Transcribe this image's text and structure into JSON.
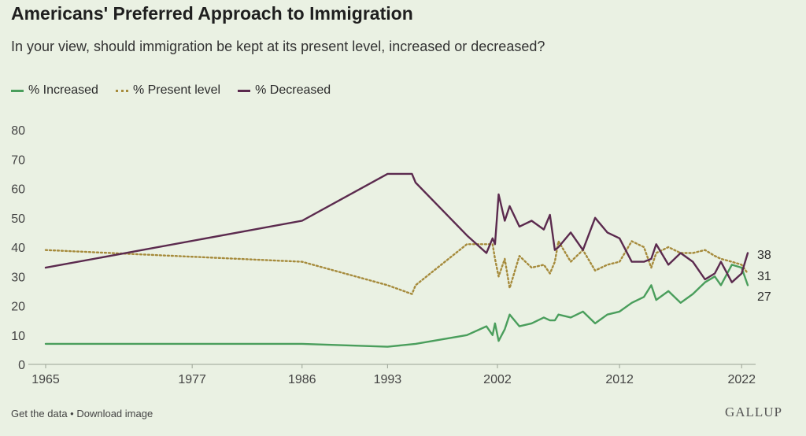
{
  "header": {
    "title": "Americans' Preferred Approach to Immigration",
    "subtitle": "In your view, should immigration be kept at its present level, increased or decreased?"
  },
  "legend": {
    "increased": "% Increased",
    "present": "% Present level",
    "decreased": "% Decreased"
  },
  "footer": {
    "get_data": "Get the data",
    "separator": " • ",
    "download": "Download image",
    "logo": "GALLUP"
  },
  "colors": {
    "increased": "#4a9e5c",
    "present": "#a68b3c",
    "decreased": "#5b2a4e",
    "background": "#eaf1e3",
    "grid": "#cfd8c6"
  },
  "chart_data": {
    "type": "line",
    "title": "Americans' Preferred Approach to Immigration",
    "subtitle": "In your view, should immigration be kept at its present level, increased or decreased?",
    "xlabel": "",
    "ylabel": "",
    "xlim": [
      1965,
      2022.5
    ],
    "ylim": [
      0,
      80
    ],
    "x_ticks": [
      1965,
      1977,
      1986,
      1993,
      2002,
      2012,
      2022
    ],
    "y_ticks": [
      0,
      10,
      20,
      30,
      40,
      50,
      60,
      70,
      80
    ],
    "grid": false,
    "legend_position": "top-left",
    "end_labels": [
      "38",
      "31",
      "27"
    ],
    "series": [
      {
        "name": "% Increased",
        "style": "solid",
        "points": [
          [
            1965,
            7
          ],
          [
            1986,
            7
          ],
          [
            1993,
            6
          ],
          [
            1995.3,
            7
          ],
          [
            1999.5,
            10
          ],
          [
            2001.1,
            13
          ],
          [
            2001.6,
            10
          ],
          [
            2001.8,
            14
          ],
          [
            2002.1,
            8
          ],
          [
            2002.6,
            12
          ],
          [
            2003,
            17
          ],
          [
            2003.8,
            13
          ],
          [
            2004.8,
            14
          ],
          [
            2005.8,
            16
          ],
          [
            2006.3,
            15
          ],
          [
            2006.7,
            15
          ],
          [
            2007,
            17
          ],
          [
            2008,
            16
          ],
          [
            2009,
            18
          ],
          [
            2010,
            14
          ],
          [
            2011,
            17
          ],
          [
            2012,
            18
          ],
          [
            2013,
            21
          ],
          [
            2014,
            23
          ],
          [
            2014.6,
            27
          ],
          [
            2015,
            22
          ],
          [
            2016,
            25
          ],
          [
            2017,
            21
          ],
          [
            2018,
            24
          ],
          [
            2019,
            28
          ],
          [
            2019.8,
            30
          ],
          [
            2020.3,
            27
          ],
          [
            2021.2,
            34
          ],
          [
            2022,
            33
          ],
          [
            2022.5,
            27
          ]
        ]
      },
      {
        "name": "% Present level",
        "style": "dotted",
        "points": [
          [
            1965,
            39
          ],
          [
            1986,
            35
          ],
          [
            1993,
            27
          ],
          [
            1995,
            24
          ],
          [
            1995.3,
            27
          ],
          [
            1999.5,
            41
          ],
          [
            2001.1,
            41
          ],
          [
            2001.6,
            41
          ],
          [
            2001.8,
            36
          ],
          [
            2002.1,
            30
          ],
          [
            2002.6,
            36
          ],
          [
            2003,
            26
          ],
          [
            2003.8,
            37
          ],
          [
            2004.8,
            33
          ],
          [
            2005.8,
            34
          ],
          [
            2006.3,
            31
          ],
          [
            2006.7,
            35
          ],
          [
            2007,
            42
          ],
          [
            2008,
            35
          ],
          [
            2009,
            39
          ],
          [
            2010,
            32
          ],
          [
            2011,
            34
          ],
          [
            2012,
            35
          ],
          [
            2013,
            42
          ],
          [
            2014,
            40
          ],
          [
            2014.6,
            33
          ],
          [
            2015,
            38
          ],
          [
            2016,
            40
          ],
          [
            2017,
            38
          ],
          [
            2018,
            38
          ],
          [
            2019,
            39
          ],
          [
            2019.8,
            37
          ],
          [
            2020.3,
            36
          ],
          [
            2021.2,
            35
          ],
          [
            2022,
            34
          ],
          [
            2022.5,
            31
          ]
        ]
      },
      {
        "name": "% Decreased",
        "style": "solid",
        "points": [
          [
            1965,
            33
          ],
          [
            1986,
            49
          ],
          [
            1993,
            65
          ],
          [
            1995,
            65
          ],
          [
            1995.3,
            62
          ],
          [
            1999.5,
            44
          ],
          [
            2001.1,
            38
          ],
          [
            2001.6,
            43
          ],
          [
            2001.8,
            41
          ],
          [
            2002.1,
            58
          ],
          [
            2002.6,
            49
          ],
          [
            2003,
            54
          ],
          [
            2003.8,
            47
          ],
          [
            2004.8,
            49
          ],
          [
            2005.8,
            46
          ],
          [
            2006.3,
            51
          ],
          [
            2006.7,
            39
          ],
          [
            2007,
            40
          ],
          [
            2008,
            45
          ],
          [
            2009,
            39
          ],
          [
            2010,
            50
          ],
          [
            2011,
            45
          ],
          [
            2012,
            43
          ],
          [
            2013,
            35
          ],
          [
            2014,
            35
          ],
          [
            2014.6,
            36
          ],
          [
            2015,
            41
          ],
          [
            2016,
            34
          ],
          [
            2017,
            38
          ],
          [
            2018,
            35
          ],
          [
            2019,
            29
          ],
          [
            2019.8,
            31
          ],
          [
            2020.3,
            35
          ],
          [
            2021.2,
            28
          ],
          [
            2022,
            31
          ],
          [
            2022.5,
            38
          ]
        ]
      }
    ]
  }
}
